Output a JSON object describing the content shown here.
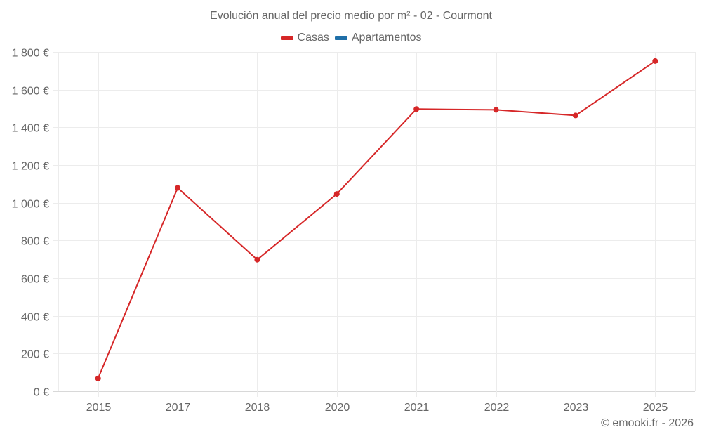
{
  "chart_data": {
    "type": "line",
    "title": "Evolución anual del precio medio por m² - 02 - Courmont",
    "xlabel": "",
    "ylabel": "",
    "categories": [
      "2015",
      "2017",
      "2018",
      "2020",
      "2021",
      "2022",
      "2023",
      "2025"
    ],
    "series": [
      {
        "name": "Casas",
        "color": "#d62728",
        "values": [
          68,
          1079,
          698,
          1047,
          1497,
          1493,
          1463,
          1752
        ]
      },
      {
        "name": "Apartamentos",
        "color": "#1f6fa8",
        "values": []
      }
    ],
    "ylim": [
      0,
      1800
    ],
    "yticks": [
      0,
      200,
      400,
      600,
      800,
      1000,
      1200,
      1400,
      1600,
      1800
    ],
    "ytick_labels": [
      "0 €",
      "200 €",
      "400 €",
      "600 €",
      "800 €",
      "1 000 €",
      "1 200 €",
      "1 400 €",
      "1 600 €",
      "1 800 €"
    ],
    "grid": true,
    "legend_position": "top"
  },
  "header": {
    "title": "Evolución anual del precio medio por m² - 02 - Courmont"
  },
  "legend": {
    "items": [
      {
        "label": "Casas",
        "color": "#d62728"
      },
      {
        "label": "Apartamentos",
        "color": "#1f6fa8"
      }
    ]
  },
  "footer": {
    "credit": "© emooki.fr - 2026"
  }
}
